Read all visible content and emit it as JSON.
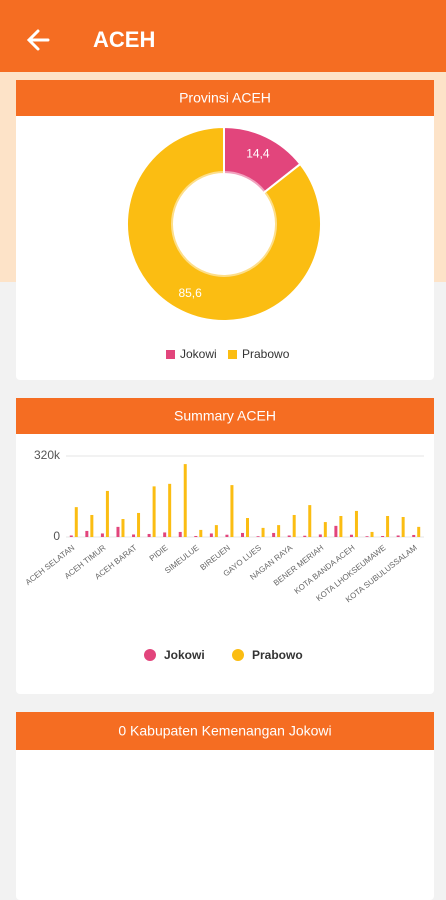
{
  "header": {
    "title": "ACEH"
  },
  "chart_data": [
    {
      "type": "pie",
      "donut": true,
      "title": "Provinsi ACEH",
      "categories": [
        "Jokowi",
        "Prabowo"
      ],
      "values": [
        14.4,
        85.6
      ],
      "value_labels": [
        "14,4",
        "85,6"
      ],
      "colors": [
        "#e2457c",
        "#fbbd12"
      ],
      "legend": "bottom"
    },
    {
      "type": "bar",
      "title": "Summary ACEH",
      "categories": [
        "ACEH SELATAN",
        null,
        "ACEH TIMUR",
        null,
        "ACEH BARAT",
        null,
        "PIDIE",
        null,
        "SIMEULUE",
        null,
        "BIREUEN",
        null,
        "GAYO LUES",
        null,
        "NAGAN RAYA",
        null,
        "BENER MERIAH",
        null,
        "KOTA BANDA ACEH",
        null,
        "KOTA LHOKSEUMAWE",
        null,
        "KOTA SUBULUSSALAM"
      ],
      "series": [
        {
          "name": "Jokowi",
          "color": "#e2457c",
          "values": [
            6000,
            24000,
            14000,
            40000,
            10000,
            12000,
            18000,
            20000,
            4000,
            14000,
            9000,
            16000,
            3000,
            16000,
            6000,
            5000,
            10000,
            44000,
            9000,
            3000,
            4000,
            6000,
            8000
          ]
        },
        {
          "name": "Prabowo",
          "color": "#fbbd12",
          "values": [
            118000,
            87000,
            182000,
            71000,
            95000,
            200000,
            210000,
            288000,
            28000,
            47000,
            205000,
            75000,
            36000,
            47000,
            87000,
            126000,
            59000,
            83000,
            103000,
            20000,
            83000,
            79000,
            40000
          ]
        }
      ],
      "ylim": [
        0,
        320000
      ],
      "yticks": [
        0,
        {
          "value": 320000,
          "label": "320k"
        }
      ],
      "grid": true,
      "legend": "bottom"
    }
  ],
  "panel": {
    "title": "0 Kabupaten Kemenangan Jokowi"
  }
}
